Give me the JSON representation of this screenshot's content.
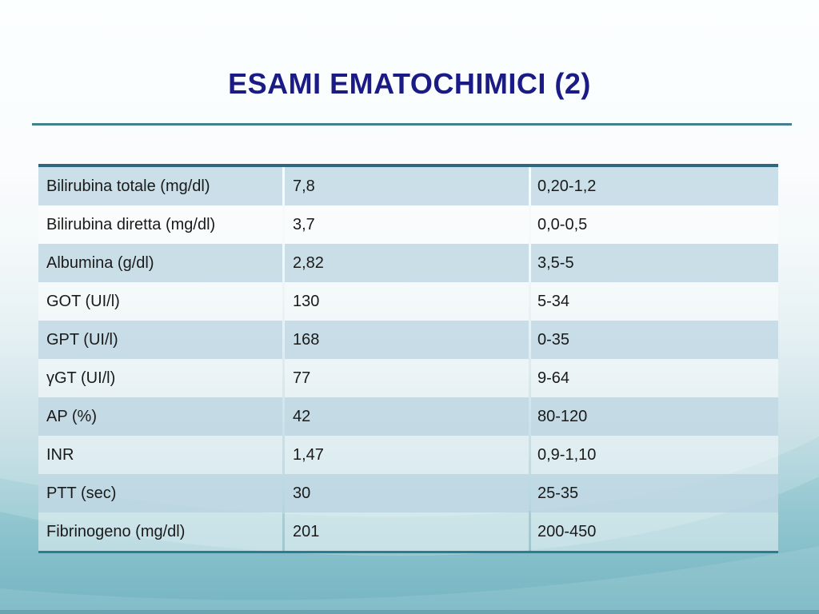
{
  "slide": {
    "title": "ESAMI EMATOCHIMICI (2)"
  },
  "table": {
    "rows": [
      {
        "label": "Bilirubina totale (mg/dl)",
        "value": "7,8",
        "range": "0,20-1,2"
      },
      {
        "label": "Bilirubina diretta (mg/dl)",
        "value": "3,7",
        "range": "0,0-0,5"
      },
      {
        "label": "Albumina (g/dl)",
        "value": "2,82",
        "range": "3,5-5"
      },
      {
        "label": "GOT (UI/l)",
        "value": "130",
        "range": "5-34"
      },
      {
        "label": "GPT (UI/l)",
        "value": "168",
        "range": "0-35"
      },
      {
        "label": "γGT (UI/l)",
        "value": "77",
        "range": "9-64"
      },
      {
        "label": "AP (%)",
        "value": "42",
        "range": "80-120"
      },
      {
        "label": "INR",
        "value": "1,47",
        "range": "0,9-1,10"
      },
      {
        "label": "PTT (sec)",
        "value": "30",
        "range": "25-35"
      },
      {
        "label": "Fibrinogeno (mg/dl)",
        "value": "201",
        "range": "200-450"
      }
    ]
  },
  "colors": {
    "title_text": "#1b1b86",
    "title_rule": "#42808e",
    "table_top_border": "#2e6880",
    "table_bottom_border": "#2e7a90",
    "banded_row": "#cfe1e9",
    "body_text": "#1a1a1a",
    "background_top": "#fcffff",
    "background_bottom": "#74b5c2"
  }
}
